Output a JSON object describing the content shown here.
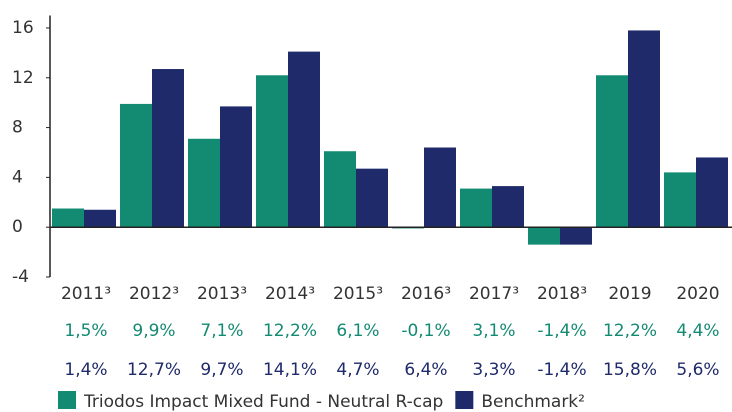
{
  "chart_data": {
    "type": "bar",
    "categories": [
      "2011³",
      "2012³",
      "2013³",
      "2014³",
      "2015³",
      "2016³",
      "2017³",
      "2018³",
      "2019",
      "2020"
    ],
    "series": [
      {
        "name": "Triodos Impact Mixed Fund - Neutral R-cap",
        "color": "#138a72",
        "values": [
          1.5,
          9.9,
          7.1,
          12.2,
          6.1,
          -0.1,
          3.1,
          -1.4,
          12.2,
          4.4
        ],
        "value_labels": [
          "1,5%",
          "9,9%",
          "7,1%",
          "12,2%",
          "6,1%",
          "-0,1%",
          "3,1%",
          "-1,4%",
          "12,2%",
          "4,4%"
        ]
      },
      {
        "name": "Benchmark²",
        "color": "#1f2a6b",
        "values": [
          1.4,
          12.7,
          9.7,
          14.1,
          4.7,
          6.4,
          3.3,
          -1.4,
          15.8,
          5.6
        ],
        "value_labels": [
          "1,4%",
          "12,7%",
          "9,7%",
          "14,1%",
          "4,7%",
          "6,4%",
          "3,3%",
          "-1,4%",
          "15,8%",
          "5,6%"
        ]
      }
    ],
    "ylim": [
      -4,
      17
    ],
    "yticks": [
      16,
      12,
      8,
      4,
      0,
      -4
    ],
    "legend": "bottom"
  }
}
